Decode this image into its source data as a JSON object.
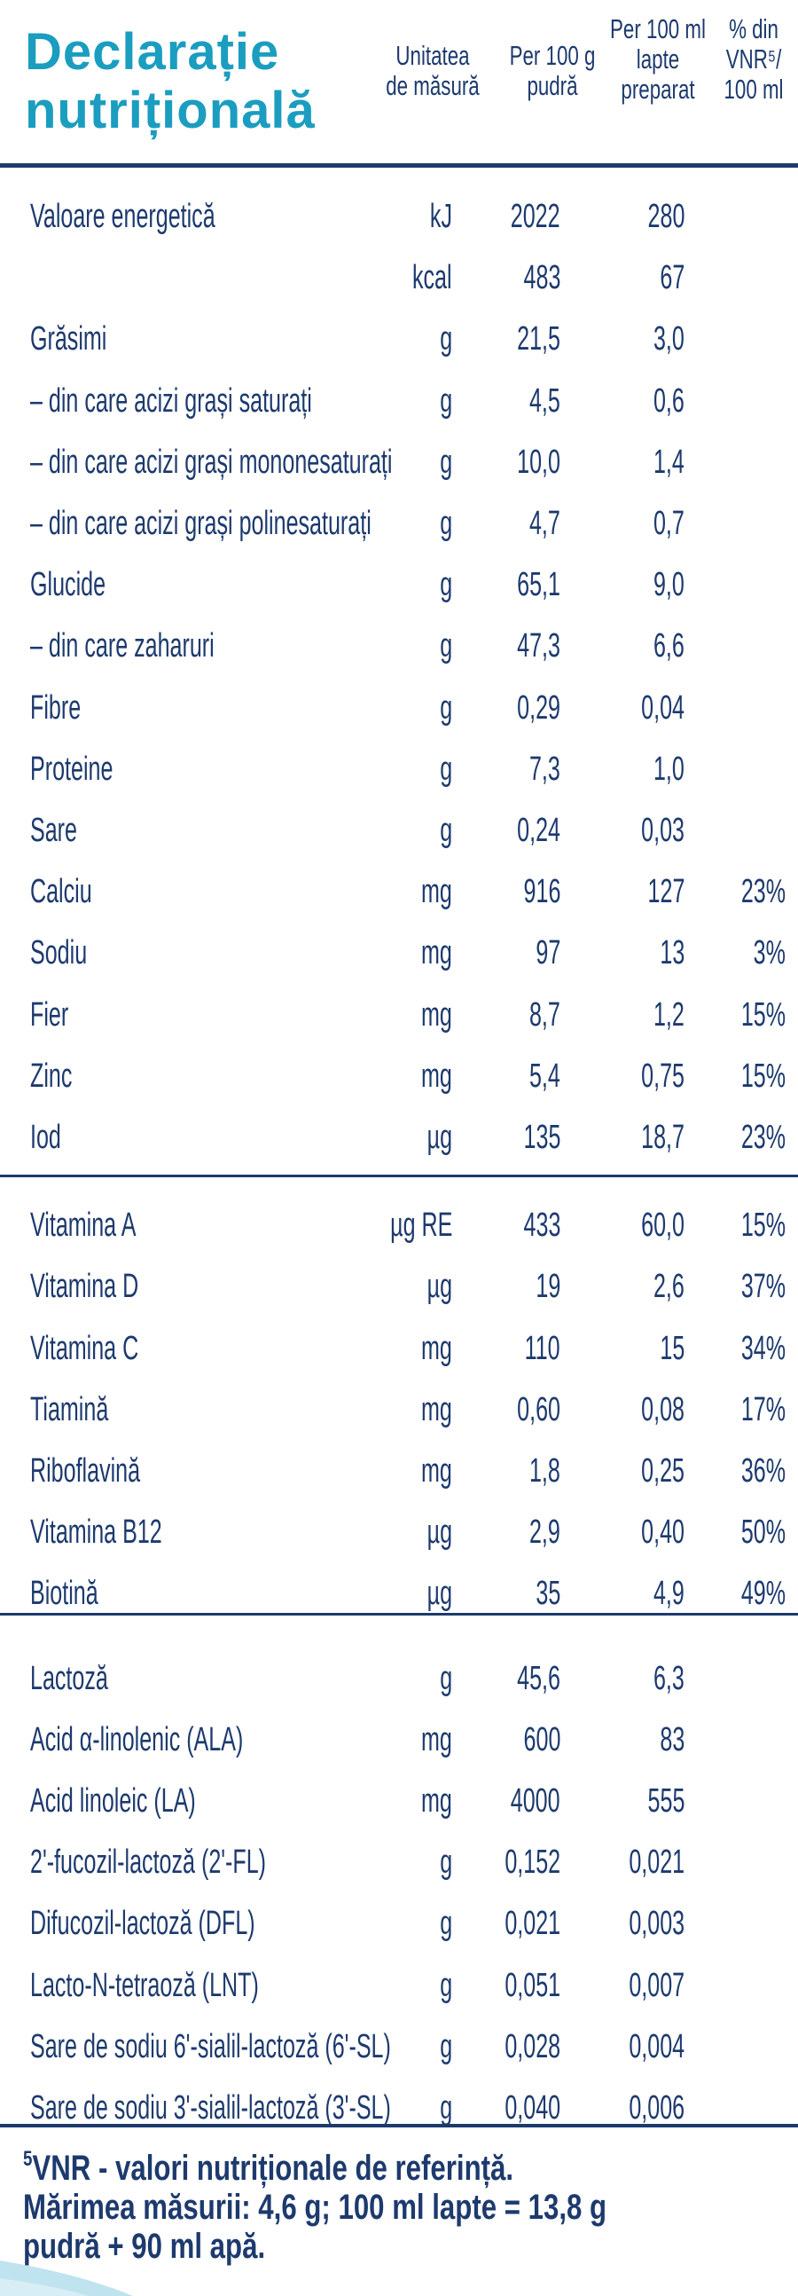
{
  "header": {
    "title_line1": "Declarație",
    "title_line2": "nutrițională",
    "col_unit": [
      "Unitatea",
      "de măsură"
    ],
    "col_per100g": [
      "Per 100 g",
      "pudră"
    ],
    "col_per100ml": [
      "Per 100 ml",
      "lapte",
      "preparat"
    ],
    "col_vnr": [
      "% din",
      "VNR⁵/",
      "100 ml"
    ]
  },
  "rows": [
    {
      "name": "Valoare energetică",
      "unit": "kJ",
      "per100g": "2022",
      "per100ml": "280",
      "vnr": ""
    },
    {
      "name": "",
      "unit": "kcal",
      "per100g": "483",
      "per100ml": "67",
      "vnr": ""
    },
    {
      "name": "Grăsimi",
      "unit": "g",
      "per100g": "21,5",
      "per100ml": "3,0",
      "vnr": ""
    },
    {
      "name": "– din care acizi grași saturați",
      "unit": "g",
      "per100g": "4,5",
      "per100ml": "0,6",
      "vnr": ""
    },
    {
      "name": "– din care acizi grași mononesaturați",
      "unit": "g",
      "per100g": "10,0",
      "per100ml": "1,4",
      "vnr": ""
    },
    {
      "name": "– din care acizi grași polinesaturați",
      "unit": "g",
      "per100g": "4,7",
      "per100ml": "0,7",
      "vnr": ""
    },
    {
      "name": "Glucide",
      "unit": "g",
      "per100g": "65,1",
      "per100ml": "9,0",
      "vnr": ""
    },
    {
      "name": "– din care zaharuri",
      "unit": "g",
      "per100g": "47,3",
      "per100ml": "6,6",
      "vnr": ""
    },
    {
      "name": "Fibre",
      "unit": "g",
      "per100g": "0,29",
      "per100ml": "0,04",
      "vnr": ""
    },
    {
      "name": "Proteine",
      "unit": "g",
      "per100g": "7,3",
      "per100ml": "1,0",
      "vnr": ""
    },
    {
      "name": "Sare",
      "unit": "g",
      "per100g": "0,24",
      "per100ml": "0,03",
      "vnr": ""
    },
    {
      "name": "Calciu",
      "unit": "mg",
      "per100g": "916",
      "per100ml": "127",
      "vnr": "23%"
    },
    {
      "name": "Sodiu",
      "unit": "mg",
      "per100g": "97",
      "per100ml": "13",
      "vnr": "3%"
    },
    {
      "name": "Fier",
      "unit": "mg",
      "per100g": "8,7",
      "per100ml": "1,2",
      "vnr": "15%"
    },
    {
      "name": "Zinc",
      "unit": "mg",
      "per100g": "5,4",
      "per100ml": "0,75",
      "vnr": "15%"
    },
    {
      "name": "Iod",
      "unit": "µg",
      "per100g": "135",
      "per100ml": "18,7",
      "vnr": "23%"
    },
    {
      "name": "Vitamina A",
      "unit": "µg RE",
      "per100g": "433",
      "per100ml": "60,0",
      "vnr": "15%"
    },
    {
      "name": "Vitamina D",
      "unit": "µg",
      "per100g": "19",
      "per100ml": "2,6",
      "vnr": "37%"
    },
    {
      "name": "Vitamina C",
      "unit": "mg",
      "per100g": "110",
      "per100ml": "15",
      "vnr": "34%"
    },
    {
      "name": "Tiamină",
      "unit": "mg",
      "per100g": "0,60",
      "per100ml": "0,08",
      "vnr": "17%"
    },
    {
      "name": "Riboflavină",
      "unit": "mg",
      "per100g": "1,8",
      "per100ml": "0,25",
      "vnr": "36%"
    },
    {
      "name": "Vitamina B12",
      "unit": "µg",
      "per100g": "2,9",
      "per100ml": "0,40",
      "vnr": "50%"
    },
    {
      "name": "Biotină",
      "unit": "µg",
      "per100g": "35",
      "per100ml": "4,9",
      "vnr": "49%"
    },
    {
      "name": "Lactoză",
      "unit": "g",
      "per100g": "45,6",
      "per100ml": "6,3",
      "vnr": ""
    },
    {
      "name": "Acid α-linolenic (ALA)",
      "unit": "mg",
      "per100g": "600",
      "per100ml": "83",
      "vnr": ""
    },
    {
      "name": "Acid linoleic (LA)",
      "unit": "mg",
      "per100g": "4000",
      "per100ml": "555",
      "vnr": ""
    },
    {
      "name": "2'-fucozil-lactoză (2'-FL)",
      "unit": "g",
      "per100g": "0,152",
      "per100ml": "0,021",
      "vnr": ""
    },
    {
      "name": "Difucozil-lactoză (DFL)",
      "unit": "g",
      "per100g": "0,021",
      "per100ml": "0,003",
      "vnr": ""
    },
    {
      "name": "Lacto-N-tetraoză (LNT)",
      "unit": "g",
      "per100g": "0,051",
      "per100ml": "0,007",
      "vnr": ""
    },
    {
      "name": "Sare de sodiu 6'-sialil-lactoză (6'-SL)",
      "unit": "g",
      "per100g": "0,028",
      "per100ml": "0,004",
      "vnr": ""
    },
    {
      "name": "Sare de sodiu 3'-sialil-lactoză (3'-SL)",
      "unit": "g",
      "per100g": "0,040",
      "per100ml": "0,006",
      "vnr": ""
    }
  ],
  "footnote": {
    "marker": "5",
    "line1": "VNR - valori nutriționale de referință.",
    "line2": "Mărimea măsurii: 4,6 g; 100 ml lapte = 13,8 g",
    "line3": "pudră + 90 ml apă."
  },
  "colors": {
    "title": "#1b9dc0",
    "text": "#1d3a6e",
    "wave": "#bfe3ef"
  }
}
